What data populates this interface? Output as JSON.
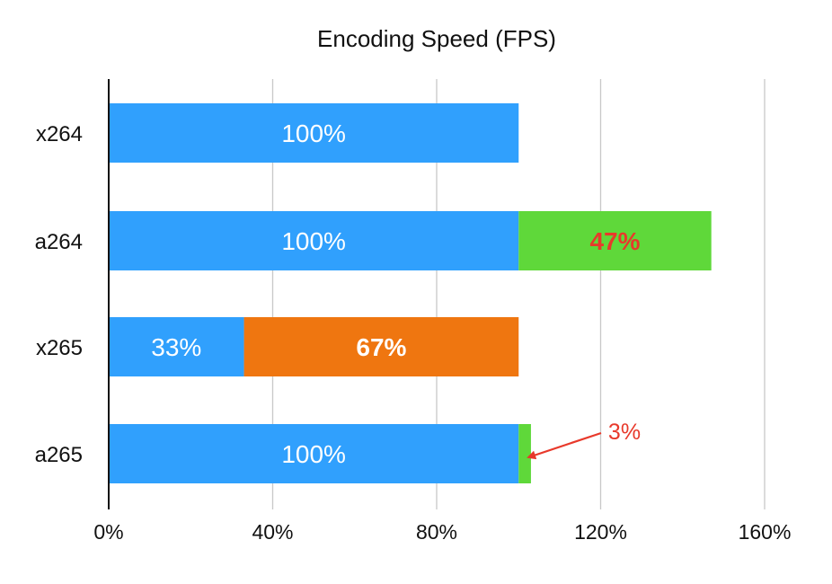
{
  "chart_data": {
    "type": "bar",
    "orientation": "horizontal",
    "stacked": true,
    "title": "Encoding Speed (FPS)",
    "xlabel": "",
    "ylabel": "",
    "xlim": [
      0,
      160
    ],
    "x_ticks": [
      0,
      40,
      80,
      120,
      160
    ],
    "x_tick_labels": [
      "0%",
      "40%",
      "80%",
      "120%",
      "160%"
    ],
    "grid": "vertical",
    "categories": [
      "x264",
      "a264",
      "x265",
      "a265"
    ],
    "series": [
      {
        "name": "base",
        "color": "#30a0fd",
        "values": [
          100,
          100,
          33,
          100
        ],
        "labels": [
          "100%",
          "100%",
          "33%",
          "100%"
        ],
        "label_colors": [
          "#ffffff",
          "#ffffff",
          "#ffffff",
          "#ffffff"
        ]
      },
      {
        "name": "gain",
        "color": "#5fd83a",
        "values": [
          0,
          47,
          0,
          3
        ],
        "labels": [
          "",
          "47%",
          "",
          ""
        ],
        "label_colors": [
          "",
          "#e8392b",
          "",
          ""
        ]
      },
      {
        "name": "other",
        "color": "#ef7610",
        "values": [
          0,
          0,
          67,
          0
        ],
        "labels": [
          "",
          "",
          "67%",
          ""
        ],
        "label_colors": [
          "",
          "",
          "#ffffff",
          ""
        ]
      }
    ],
    "annotations": [
      {
        "text": "3%",
        "color": "#e8392b",
        "category": "a265",
        "target_value": 101.5,
        "arrow": true
      }
    ]
  }
}
